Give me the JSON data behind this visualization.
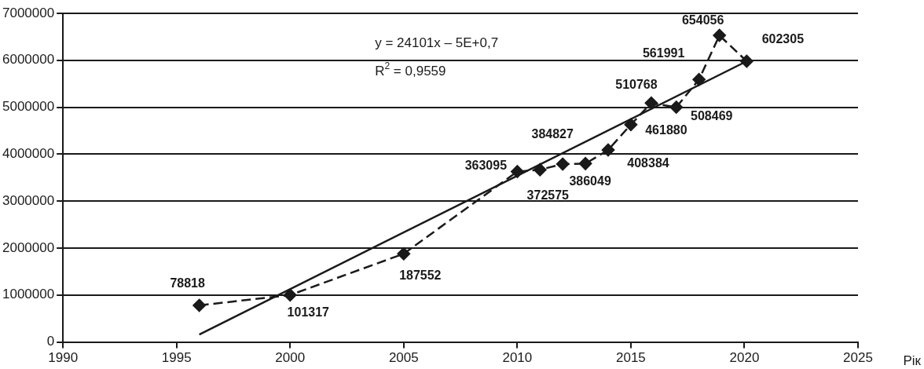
{
  "chart_data": {
    "type": "line",
    "xlabel": "Рік",
    "annotations": [
      "y = 24101x – 5E+0,7",
      "R$^{2}$ = 0,9559",
      {
        "text": "78818",
        "x": 1996,
        "y": 780000
      },
      {
        "text": "101317",
        "x": 2000,
        "y": 1000000
      },
      {
        "text": "187552",
        "x": 2005,
        "y": 1880000
      },
      {
        "text": "363095",
        "x": 2010,
        "y": 3630000
      },
      {
        "text": "372575",
        "x": 2011,
        "y": 3670000
      },
      {
        "text": "384827",
        "x": 2012,
        "y": 3790000
      },
      {
        "text": "386049",
        "x": 2013,
        "y": 3800000
      },
      {
        "text": "408384",
        "x": 2014,
        "y": 4090000
      },
      {
        "text": "461880",
        "x": 2015,
        "y": 4630000
      },
      {
        "text": "510768",
        "x": 2015.9,
        "y": 5090000
      },
      {
        "text": "508469",
        "x": 2017,
        "y": 5000000
      },
      {
        "text": "561991",
        "x": 2018,
        "y": 5590000
      },
      {
        "text": "654056",
        "x": 2018.9,
        "y": 6530000
      },
      {
        "text": "602305",
        "x": 2020.1,
        "y": 5980000
      }
    ],
    "xlim": [
      1990,
      2025
    ],
    "xticks": [
      1990,
      1995,
      2000,
      2005,
      2010,
      2015,
      2020,
      2025
    ],
    "ylim": [
      0,
      7000000
    ],
    "yticks": [
      0,
      1000000,
      2000000,
      3000000,
      4000000,
      5000000,
      6000000,
      7000000
    ],
    "grid": "y",
    "legend": false,
    "series": [
      {
        "type": "line",
        "color": "#1a1a1a",
        "marker": "diamond",
        "line_style": "dashed",
        "x": [
          1996,
          2000,
          2005,
          2010,
          2011,
          2012,
          2013,
          2014,
          2015,
          2015.9,
          2017,
          2018,
          2018.9,
          2020.1
        ],
        "values": [
          780000,
          1000000,
          1880000,
          3630000,
          3670000,
          3790000,
          3800000,
          4090000,
          4630000,
          5090000,
          5000000,
          5590000,
          6530000,
          5980000
        ]
      },
      {
        "type": "line",
        "color": "#1a1a1a",
        "marker": "none",
        "line_style": "solid",
        "x": [
          1996,
          2020.1
        ],
        "values": [
          160000,
          5980000
        ]
      }
    ]
  }
}
